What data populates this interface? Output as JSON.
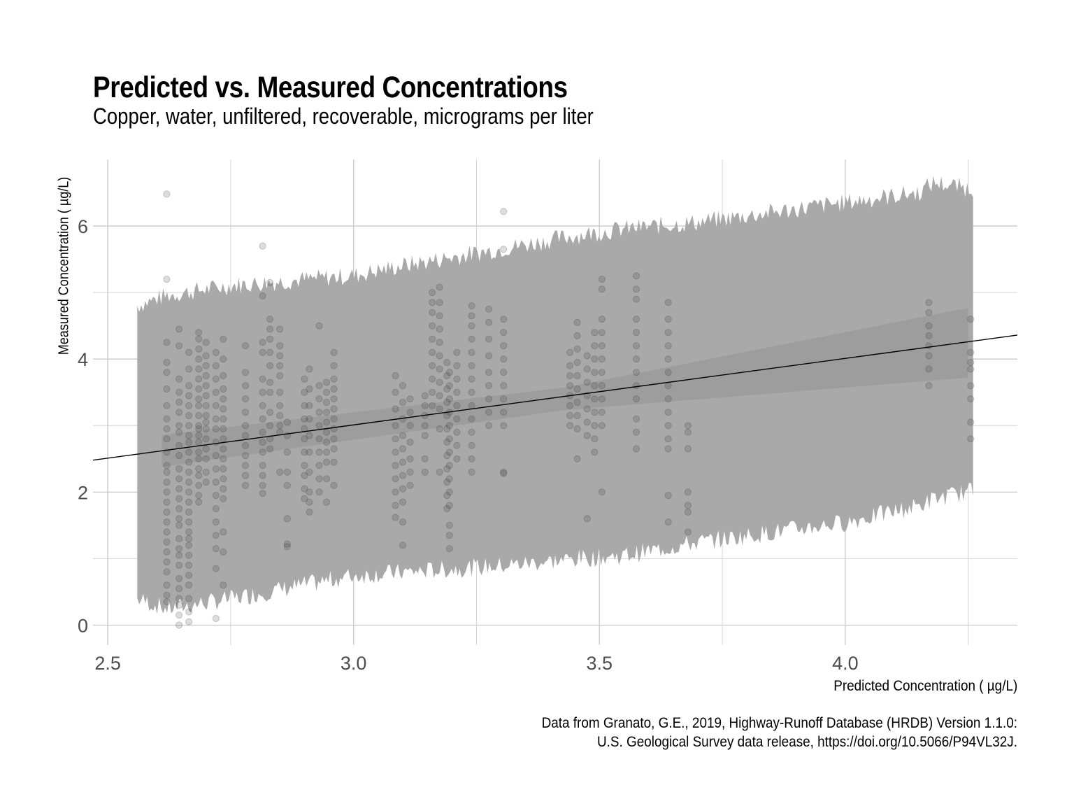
{
  "chart_data": {
    "type": "scatter",
    "title": "Predicted vs. Measured Concentrations",
    "subtitle": "Copper, water, unfiltered, recoverable, micrograms per liter",
    "xlabel": "Predicted Concentration ( µg/L)",
    "ylabel": "Measured Concentration ( µg/L)",
    "caption_line1": "Data from Granato, G.E., 2019, Highway-Runoff Database (HRDB) Version 1.1.0:",
    "caption_line2": "U.S. Geological Survey data release, https://doi.org/10.5066/P94VL32J.",
    "xlim": [
      2.47,
      4.35
    ],
    "ylim": [
      -0.3,
      7.0
    ],
    "x_ticks": [
      2.5,
      3.0,
      3.5,
      4.0
    ],
    "x_tick_labels": [
      "2.5",
      "3.0",
      "3.5",
      "4.0"
    ],
    "y_ticks": [
      0,
      2,
      4,
      6
    ],
    "y_tick_labels": [
      "0",
      "2",
      "4",
      "6"
    ],
    "grid": true,
    "regression_line": {
      "x": [
        2.47,
        4.35
      ],
      "y": [
        2.48,
        4.36
      ]
    },
    "confidence_band": {
      "x": [
        2.61,
        3.0,
        3.5,
        4.25
      ],
      "lower": [
        2.38,
        2.83,
        3.3,
        3.72
      ],
      "upper": [
        2.86,
        3.1,
        3.65,
        4.77
      ]
    },
    "prediction_band": {
      "x": [
        2.56,
        2.62,
        2.75,
        3.0,
        3.1,
        3.3,
        3.45,
        3.55,
        3.7,
        4.0,
        4.15,
        4.18,
        4.26
      ],
      "lower": [
        0.45,
        0.3,
        0.45,
        0.8,
        0.85,
        0.95,
        1.05,
        1.1,
        1.3,
        1.6,
        1.85,
        1.95,
        2.08
      ],
      "upper": [
        4.75,
        4.9,
        5.05,
        5.2,
        5.35,
        5.6,
        5.8,
        5.9,
        6.0,
        6.3,
        6.45,
        6.6,
        6.5
      ]
    },
    "series": [
      {
        "name": "Observations",
        "columns": [
          {
            "x": 2.62,
            "y": [
              6.48,
              5.2,
              4.25,
              3.95,
              3.8,
              3.55,
              3.3,
              3.1,
              2.95,
              2.8,
              2.6,
              2.4,
              2.3,
              2.15,
              2.0,
              1.85,
              1.7,
              1.55,
              1.4,
              1.25,
              1.1,
              0.95,
              0.8,
              0.6,
              0.45,
              0.35
            ]
          },
          {
            "x": 2.645,
            "y": [
              4.45,
              4.2,
              3.7,
              3.5,
              3.35,
              3.2,
              3.0,
              2.9,
              2.7,
              2.55,
              2.35,
              2.2,
              2.05,
              1.9,
              1.75,
              1.6,
              1.5,
              1.3,
              1.15,
              1.05,
              0.9,
              0.7,
              0.55,
              0.4,
              0.3,
              0.15,
              0.0
            ]
          },
          {
            "x": 2.665,
            "y": [
              4.1,
              3.85,
              3.6,
              3.45,
              3.3,
              3.15,
              3.0,
              2.85,
              2.75,
              2.6,
              2.45,
              2.3,
              2.15,
              2.0,
              1.85,
              1.7,
              1.55,
              1.4,
              1.3,
              1.2,
              1.05,
              0.9,
              0.75,
              0.6,
              0.4,
              0.2,
              0.05
            ]
          },
          {
            "x": 2.685,
            "y": [
              4.4,
              4.3,
              4.15,
              4.0,
              3.85,
              3.7,
              3.55,
              3.4,
              3.3,
              3.15,
              3.0,
              2.95,
              2.85,
              2.75,
              2.6,
              2.5,
              2.35,
              2.25,
              2.1,
              1.95,
              1.85
            ]
          },
          {
            "x": 2.7,
            "y": [
              4.25,
              4.05,
              3.9,
              3.75,
              3.6,
              3.45,
              3.3,
              3.15,
              3.05,
              2.95,
              2.8,
              2.65,
              2.5,
              2.3,
              2.15
            ]
          },
          {
            "x": 2.72,
            "y": [
              4.1,
              3.9,
              3.7,
              3.5,
              3.3,
              3.1,
              2.95,
              2.75,
              2.55,
              2.35,
              2.15,
              1.95,
              1.75,
              1.55,
              1.35,
              1.15,
              0.85,
              0.1
            ]
          },
          {
            "x": 2.735,
            "y": [
              4.3,
              4.0,
              3.75,
              3.55,
              3.4,
              3.25,
              3.1,
              2.95,
              2.8,
              2.65,
              2.5,
              2.35,
              2.2,
              2.05,
              1.9,
              1.4,
              1.1,
              0.6
            ]
          },
          {
            "x": 2.78,
            "y": [
              4.2,
              3.8,
              3.6,
              3.4,
              3.2,
              3.0,
              2.85,
              2.7,
              2.55,
              2.4,
              2.25,
              2.1
            ]
          },
          {
            "x": 2.815,
            "y": [
              5.7,
              4.95,
              4.25,
              4.1,
              3.7,
              3.5,
              3.3,
              3.1,
              2.9,
              2.75,
              2.6,
              2.4,
              2.25,
              2.1,
              1.98
            ]
          },
          {
            "x": 2.83,
            "y": [
              5.15,
              4.6,
              4.45,
              4.3,
              4.1,
              3.9,
              3.65,
              3.5,
              3.2,
              3.0,
              2.8,
              2.65
            ]
          },
          {
            "x": 2.85,
            "y": [
              4.45,
              4.2,
              4.05,
              3.9,
              3.75,
              3.5,
              3.3,
              3.15,
              3.0,
              2.9,
              2.3
            ]
          },
          {
            "x": 2.865,
            "y": [
              3.05,
              2.85,
              2.6,
              2.3,
              2.1,
              1.6,
              1.22,
              1.18
            ]
          },
          {
            "x": 2.9,
            "y": [
              3.7,
              3.5,
              3.3,
              3.1,
              2.95,
              2.8,
              2.6,
              2.4,
              2.25,
              2.05,
              1.9
            ]
          },
          {
            "x": 2.91,
            "y": [
              3.85,
              3.55,
              3.3,
              3.1,
              2.85,
              2.6,
              2.3,
              2.0,
              1.85,
              1.7
            ]
          },
          {
            "x": 2.93,
            "y": [
              4.5,
              3.6,
              3.4,
              3.2,
              3.0,
              2.8,
              2.6,
              2.4,
              2.2,
              2.0
            ]
          },
          {
            "x": 2.945,
            "y": [
              3.65,
              3.5,
              3.35,
              3.2,
              3.05,
              2.9,
              2.75,
              2.6,
              2.45,
              2.2,
              1.85
            ]
          },
          {
            "x": 2.96,
            "y": [
              4.1,
              3.9,
              3.7,
              3.55,
              3.4,
              3.25,
              3.1,
              2.95,
              2.8,
              2.65,
              2.45,
              2.1
            ]
          },
          {
            "x": 3.085,
            "y": [
              3.75,
              3.5,
              3.25,
              3.0,
              2.8,
              2.6,
              2.4,
              2.2,
              2.0,
              1.8,
              1.62
            ]
          },
          {
            "x": 3.1,
            "y": [
              3.6,
              3.35,
              3.1,
              2.85,
              2.65,
              2.45,
              2.25,
              2.05,
              1.85,
              1.55,
              1.2
            ]
          },
          {
            "x": 3.115,
            "y": [
              3.4,
              3.2,
              3.0,
              2.75,
              2.5,
              2.3,
              2.1
            ]
          },
          {
            "x": 3.145,
            "y": [
              3.45,
              3.3,
              3.15,
              3.0,
              2.85,
              2.5,
              2.3
            ]
          },
          {
            "x": 3.16,
            "y": [
              5.0,
              4.85,
              4.7,
              4.5,
              4.3,
              4.1,
              3.9,
              3.7,
              3.5,
              3.3
            ]
          },
          {
            "x": 3.175,
            "y": [
              5.08,
              4.85,
              4.65,
              4.45,
              4.25,
              4.05,
              3.85,
              3.65,
              3.45,
              3.25,
              2.95,
              2.3
            ]
          },
          {
            "x": 3.19,
            "y": [
              3.95,
              3.75,
              3.55,
              3.35,
              3.15,
              2.95,
              2.75,
              2.55,
              2.35,
              2.15,
              1.95,
              1.75
            ]
          },
          {
            "x": 3.195,
            "y": [
              3.8,
              3.6,
              3.4,
              3.2,
              3.0,
              2.8,
              2.6,
              2.4,
              2.2,
              2.0,
              1.8,
              1.5,
              1.35,
              1.15
            ]
          },
          {
            "x": 3.21,
            "y": [
              4.1,
              3.9,
              3.7,
              3.5,
              3.3,
              3.1,
              2.9,
              2.7,
              2.5
            ]
          },
          {
            "x": 3.24,
            "y": [
              4.8,
              4.65,
              4.5,
              4.3,
              4.1,
              3.9,
              3.7,
              3.5,
              3.3,
              3.1,
              2.9,
              2.7,
              2.5,
              2.3
            ]
          },
          {
            "x": 3.275,
            "y": [
              4.75,
              4.55,
              4.3,
              4.05,
              3.8,
              3.6,
              3.4,
              3.2,
              3.0
            ]
          },
          {
            "x": 3.305,
            "y": [
              6.22,
              5.65,
              4.6,
              4.4,
              4.2,
              4.0,
              3.8,
              3.6,
              3.4,
              3.2,
              3.0,
              2.3,
              2.28
            ]
          },
          {
            "x": 3.44,
            "y": [
              4.1,
              3.9,
              3.75,
              3.6,
              3.45,
              3.3,
              3.15,
              3.0
            ]
          },
          {
            "x": 3.455,
            "y": [
              4.55,
              4.35,
              4.15,
              3.95,
              3.75,
              3.55,
              3.35,
              3.15,
              2.95,
              2.5
            ]
          },
          {
            "x": 3.475,
            "y": [
              4.05,
              3.85,
              3.65,
              3.45,
              3.25,
              3.05,
              2.85,
              1.6
            ]
          },
          {
            "x": 3.49,
            "y": [
              4.4,
              4.2,
              4.0,
              3.8,
              3.6,
              3.4,
              3.2,
              3.0,
              2.8,
              2.6
            ]
          },
          {
            "x": 3.505,
            "y": [
              5.2,
              5.05,
              4.6,
              4.4,
              4.2,
              4.0,
              3.8,
              3.6,
              3.4,
              3.2,
              3.0,
              2.0
            ]
          },
          {
            "x": 3.575,
            "y": [
              5.25,
              5.05,
              4.9,
              4.6,
              4.4,
              4.2,
              4.0,
              3.8,
              3.6,
              3.4,
              3.1,
              2.9,
              2.65
            ]
          },
          {
            "x": 3.64,
            "y": [
              4.85,
              4.6,
              4.4,
              4.2,
              4.0,
              3.8,
              3.6,
              3.4,
              3.2,
              3.0,
              2.8,
              2.65,
              1.95,
              1.55
            ]
          },
          {
            "x": 3.68,
            "y": [
              3.0,
              2.9,
              2.65,
              2.0,
              1.8,
              1.7,
              1.4
            ]
          },
          {
            "x": 4.17,
            "y": [
              4.85,
              4.7,
              4.5,
              4.35,
              4.2,
              4.05,
              3.85,
              3.6
            ]
          },
          {
            "x": 4.255,
            "y": [
              4.6,
              4.1,
              3.95,
              3.85,
              3.6,
              3.4,
              3.05,
              2.8
            ]
          }
        ]
      }
    ]
  }
}
